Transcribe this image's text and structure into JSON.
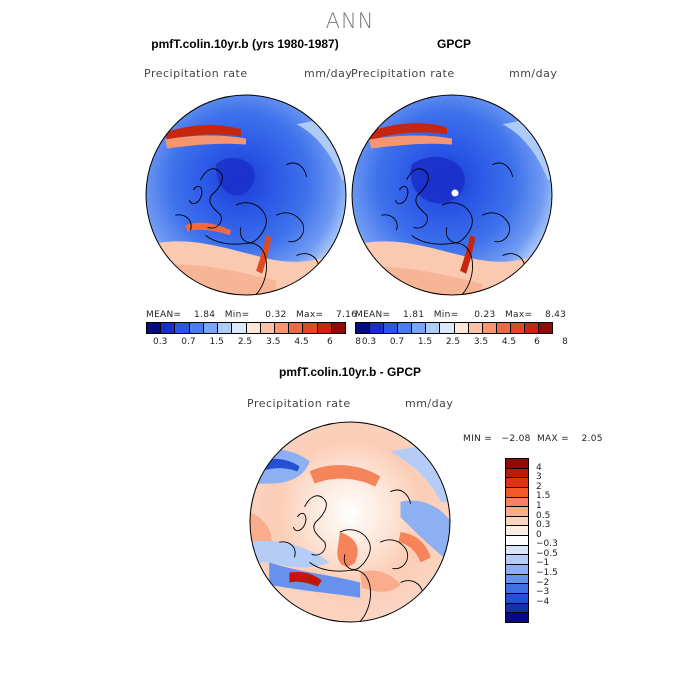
{
  "figure_title": "ANN",
  "panels": {
    "model": {
      "title": "pmfT.colin.10yr.b (yrs 1980-1987)",
      "field": "Precipitation rate",
      "units": "mm/day",
      "stats": "MEAN=    1.84   Min=     0.32   Max=    7.16"
    },
    "obs": {
      "title": "GPCP",
      "field": "Precipitation rate",
      "units": "mm/day",
      "stats": "MEAN=    1.81   Min=     0.23   Max=    8.43"
    },
    "diff": {
      "title": "pmfT.colin.10yr.b - GPCP",
      "field": "Precipitation rate",
      "units": "mm/day",
      "minmax": "MIN =   −2.08  MAX =    2.05"
    }
  },
  "colorbars": {
    "precip": {
      "colors": [
        "#0a0a80",
        "#1a2ec8",
        "#2a56e6",
        "#4a7ef0",
        "#7aa4f4",
        "#aecbf8",
        "#dde8f8",
        "#ffe6d8",
        "#fbc1a3",
        "#f59572",
        "#ee6a45",
        "#e04a22",
        "#c6260e",
        "#8e0c04"
      ],
      "tick_labels": [
        "0.3",
        "0.7",
        "1.5",
        "2.5",
        "3.5",
        "4.5",
        "6",
        "8"
      ]
    },
    "diff": {
      "colors": [
        "#8e0c04",
        "#c01808",
        "#e03210",
        "#f05a28",
        "#f5845a",
        "#f9ad8c",
        "#fcd4be",
        "#fdeee4",
        "#ffffff",
        "#d8e6fb",
        "#b4ccf6",
        "#8cb0f2",
        "#6692ee",
        "#3e70e4",
        "#2450d4",
        "#1432a8",
        "#0a0a80"
      ],
      "tick_labels": [
        "4",
        "3",
        "2",
        "1.5",
        "1",
        "0.5",
        "0.3",
        "0",
        "−0.3",
        "−0.5",
        "−1",
        "−1.5",
        "−2",
        "−3",
        "−4"
      ]
    }
  }
}
